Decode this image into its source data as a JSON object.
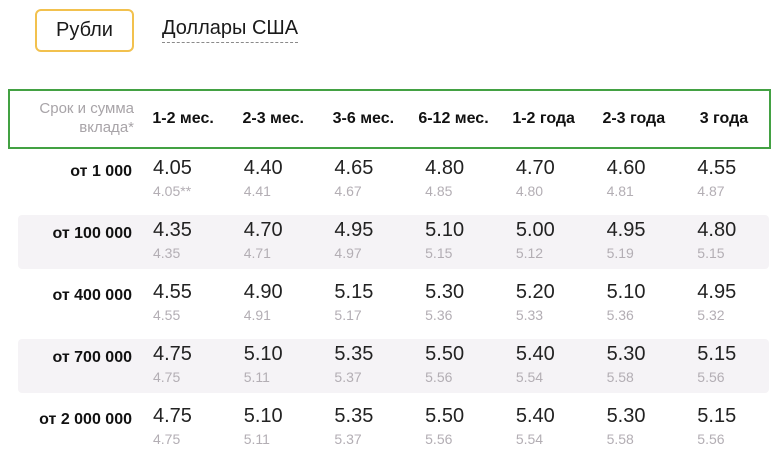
{
  "tabs": [
    {
      "label": "Рубли",
      "active": true
    },
    {
      "label": "Доллары США",
      "active": false
    }
  ],
  "table": {
    "corner_header": "Срок и сумма\nвклада*",
    "period_headers": [
      "1-2 мес.",
      "2-3 мес.",
      "3-6 мес.",
      "6-12 мес.",
      "1-2 года",
      "2-3 года",
      "3 года"
    ],
    "rows": [
      {
        "label": "от 1 000",
        "cells": [
          {
            "rate": "4.05",
            "sub": "4.05**"
          },
          {
            "rate": "4.40",
            "sub": "4.41"
          },
          {
            "rate": "4.65",
            "sub": "4.67"
          },
          {
            "rate": "4.80",
            "sub": "4.85"
          },
          {
            "rate": "4.70",
            "sub": "4.80"
          },
          {
            "rate": "4.60",
            "sub": "4.81"
          },
          {
            "rate": "4.55",
            "sub": "4.87"
          }
        ]
      },
      {
        "label": "от 100 000",
        "cells": [
          {
            "rate": "4.35",
            "sub": "4.35"
          },
          {
            "rate": "4.70",
            "sub": "4.71"
          },
          {
            "rate": "4.95",
            "sub": "4.97"
          },
          {
            "rate": "5.10",
            "sub": "5.15"
          },
          {
            "rate": "5.00",
            "sub": "5.12"
          },
          {
            "rate": "4.95",
            "sub": "5.19"
          },
          {
            "rate": "4.80",
            "sub": "5.15"
          }
        ]
      },
      {
        "label": "от 400 000",
        "cells": [
          {
            "rate": "4.55",
            "sub": "4.55"
          },
          {
            "rate": "4.90",
            "sub": "4.91"
          },
          {
            "rate": "5.15",
            "sub": "5.17"
          },
          {
            "rate": "5.30",
            "sub": "5.36"
          },
          {
            "rate": "5.20",
            "sub": "5.33"
          },
          {
            "rate": "5.10",
            "sub": "5.36"
          },
          {
            "rate": "4.95",
            "sub": "5.32"
          }
        ]
      },
      {
        "label": "от 700 000",
        "cells": [
          {
            "rate": "4.75",
            "sub": "4.75"
          },
          {
            "rate": "5.10",
            "sub": "5.11"
          },
          {
            "rate": "5.35",
            "sub": "5.37"
          },
          {
            "rate": "5.50",
            "sub": "5.56"
          },
          {
            "rate": "5.40",
            "sub": "5.54"
          },
          {
            "rate": "5.30",
            "sub": "5.58"
          },
          {
            "rate": "5.15",
            "sub": "5.56"
          }
        ]
      },
      {
        "label": "от 2 000 000",
        "cells": [
          {
            "rate": "4.75",
            "sub": "4.75"
          },
          {
            "rate": "5.10",
            "sub": "5.11"
          },
          {
            "rate": "5.35",
            "sub": "5.37"
          },
          {
            "rate": "5.50",
            "sub": "5.56"
          },
          {
            "rate": "5.40",
            "sub": "5.54"
          },
          {
            "rate": "5.30",
            "sub": "5.58"
          },
          {
            "rate": "5.15",
            "sub": "5.56"
          }
        ]
      }
    ]
  },
  "colors": {
    "header_border_green": "#43a143",
    "active_tab_border_yellow": "#f2c14e",
    "stripe_background": "#f5f3f6",
    "sub_rate_gray": "#b3aeb4",
    "corner_header_gray": "#a8a4a8"
  }
}
